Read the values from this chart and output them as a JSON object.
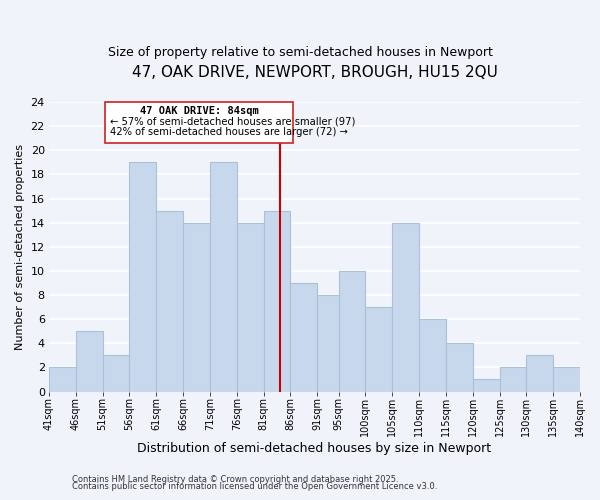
{
  "title": "47, OAK DRIVE, NEWPORT, BROUGH, HU15 2QU",
  "subtitle": "Size of property relative to semi-detached houses in Newport",
  "xlabel": "Distribution of semi-detached houses by size in Newport",
  "ylabel": "Number of semi-detached properties",
  "bar_color": "#c8d8ec",
  "bar_edge_color": "#a8c0d8",
  "background_color": "#f0f4fa",
  "grid_color": "#ffffff",
  "bins": [
    41,
    46,
    51,
    56,
    61,
    66,
    71,
    76,
    81,
    86,
    91,
    95,
    100,
    105,
    110,
    115,
    120,
    125,
    130,
    135,
    140
  ],
  "counts": [
    2,
    5,
    3,
    19,
    15,
    14,
    19,
    14,
    15,
    9,
    8,
    10,
    7,
    14,
    6,
    4,
    1,
    2,
    3,
    2
  ],
  "marker_value": 84,
  "marker_color": "#cc0000",
  "annotation_title": "47 OAK DRIVE: 84sqm",
  "annotation_line1": "← 57% of semi-detached houses are smaller (97)",
  "annotation_line2": "42% of semi-detached houses are larger (72) →",
  "ylim": [
    0,
    24
  ],
  "yticks": [
    0,
    2,
    4,
    6,
    8,
    10,
    12,
    14,
    16,
    18,
    20,
    22,
    24
  ],
  "xtick_labels": [
    "41sqm",
    "46sqm",
    "51sqm",
    "56sqm",
    "61sqm",
    "66sqm",
    "71sqm",
    "76sqm",
    "81sqm",
    "86sqm",
    "91sqm",
    "95sqm",
    "100sqm",
    "105sqm",
    "110sqm",
    "115sqm",
    "120sqm",
    "125sqm",
    "130sqm",
    "135sqm",
    "140sqm"
  ],
  "footer1": "Contains HM Land Registry data © Crown copyright and database right 2025.",
  "footer2": "Contains public sector information licensed under the Open Government Licence v3.0."
}
